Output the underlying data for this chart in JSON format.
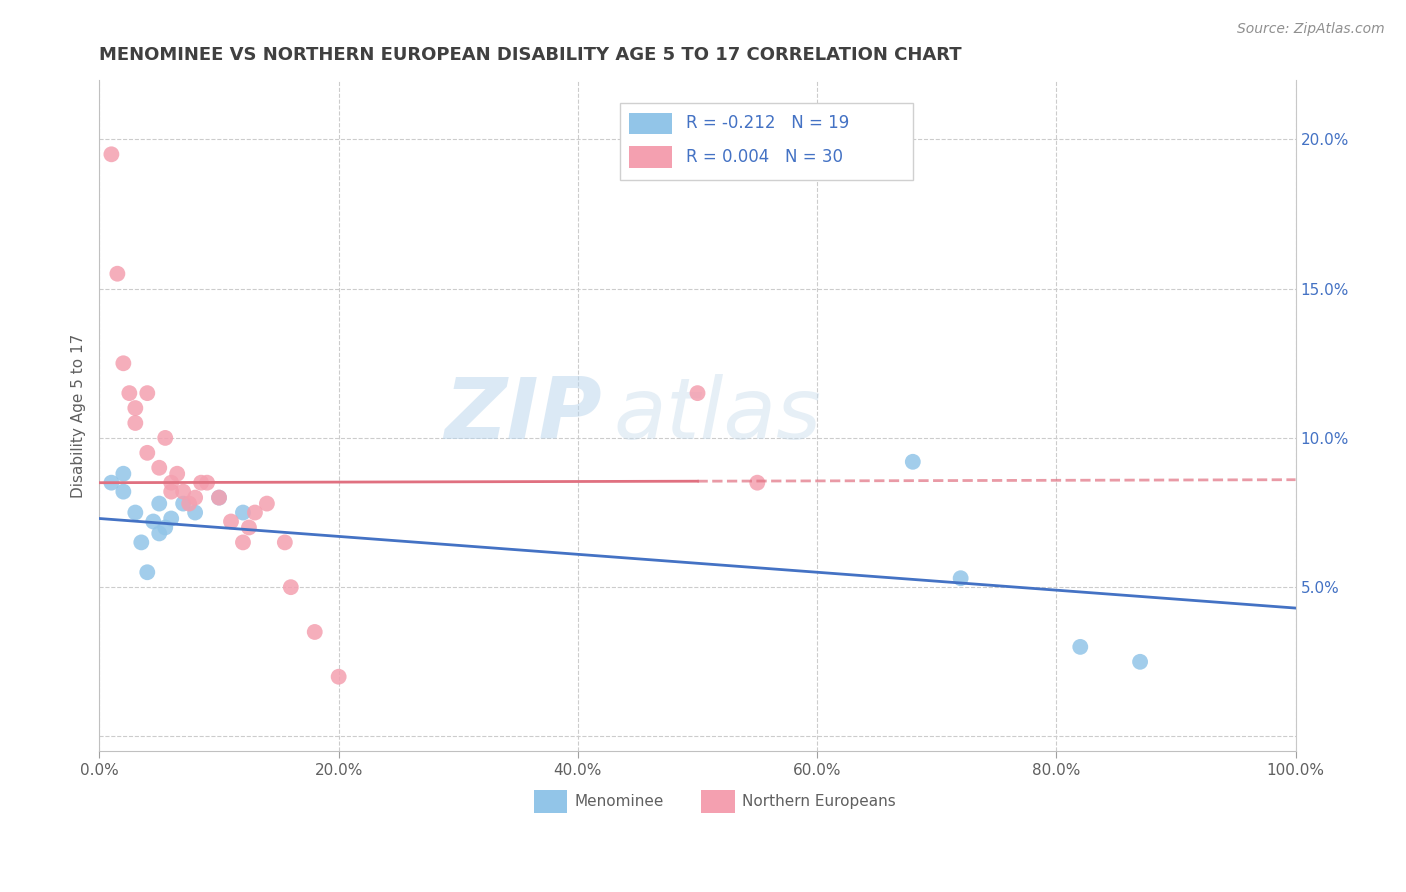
{
  "title": "MENOMINEE VS NORTHERN EUROPEAN DISABILITY AGE 5 TO 17 CORRELATION CHART",
  "source": "Source: ZipAtlas.com",
  "ylabel": "Disability Age 5 to 17",
  "legend_blue_label": "Menominee",
  "legend_pink_label": "Northern Europeans",
  "legend_blue_R": "R = -0.212",
  "legend_blue_N": "N = 19",
  "legend_pink_R": "R = 0.004",
  "legend_pink_N": "N = 30",
  "watermark_zip": "ZIP",
  "watermark_atlas": "atlas",
  "blue_color": "#92C5E8",
  "pink_color": "#F4A0B0",
  "blue_line_color": "#4472C4",
  "pink_line_color": "#E07080",
  "title_color": "#404040",
  "source_color": "#909090",
  "axis_label_color": "#606060",
  "legend_value_color": "#4472C4",
  "grid_color": "#CCCCCC",
  "xlim": [
    0,
    1.0
  ],
  "ylim": [
    -0.005,
    0.22
  ],
  "xticks": [
    0.0,
    0.2,
    0.4,
    0.6,
    0.8,
    1.0
  ],
  "xtick_labels": [
    "0.0%",
    "20.0%",
    "40.0%",
    "60.0%",
    "80.0%",
    "100.0%"
  ],
  "yticks": [
    0.0,
    0.05,
    0.1,
    0.15,
    0.2
  ],
  "ytick_labels_right": [
    "",
    "5.0%",
    "10.0%",
    "15.0%",
    "20.0%"
  ],
  "blue_x": [
    0.01,
    0.02,
    0.02,
    0.03,
    0.035,
    0.04,
    0.045,
    0.05,
    0.05,
    0.055,
    0.06,
    0.07,
    0.08,
    0.1,
    0.12,
    0.68,
    0.72,
    0.82,
    0.87
  ],
  "blue_y": [
    0.085,
    0.088,
    0.082,
    0.075,
    0.065,
    0.055,
    0.072,
    0.068,
    0.078,
    0.07,
    0.073,
    0.078,
    0.075,
    0.08,
    0.075,
    0.092,
    0.053,
    0.03,
    0.025
  ],
  "pink_x": [
    0.01,
    0.015,
    0.02,
    0.025,
    0.03,
    0.03,
    0.04,
    0.04,
    0.05,
    0.055,
    0.06,
    0.06,
    0.065,
    0.07,
    0.075,
    0.08,
    0.085,
    0.09,
    0.1,
    0.11,
    0.12,
    0.125,
    0.13,
    0.14,
    0.155,
    0.16,
    0.18,
    0.2,
    0.5,
    0.55
  ],
  "pink_y": [
    0.195,
    0.155,
    0.125,
    0.115,
    0.11,
    0.105,
    0.115,
    0.095,
    0.09,
    0.1,
    0.085,
    0.082,
    0.088,
    0.082,
    0.078,
    0.08,
    0.085,
    0.085,
    0.08,
    0.072,
    0.065,
    0.07,
    0.075,
    0.078,
    0.065,
    0.05,
    0.035,
    0.02,
    0.115,
    0.085
  ]
}
